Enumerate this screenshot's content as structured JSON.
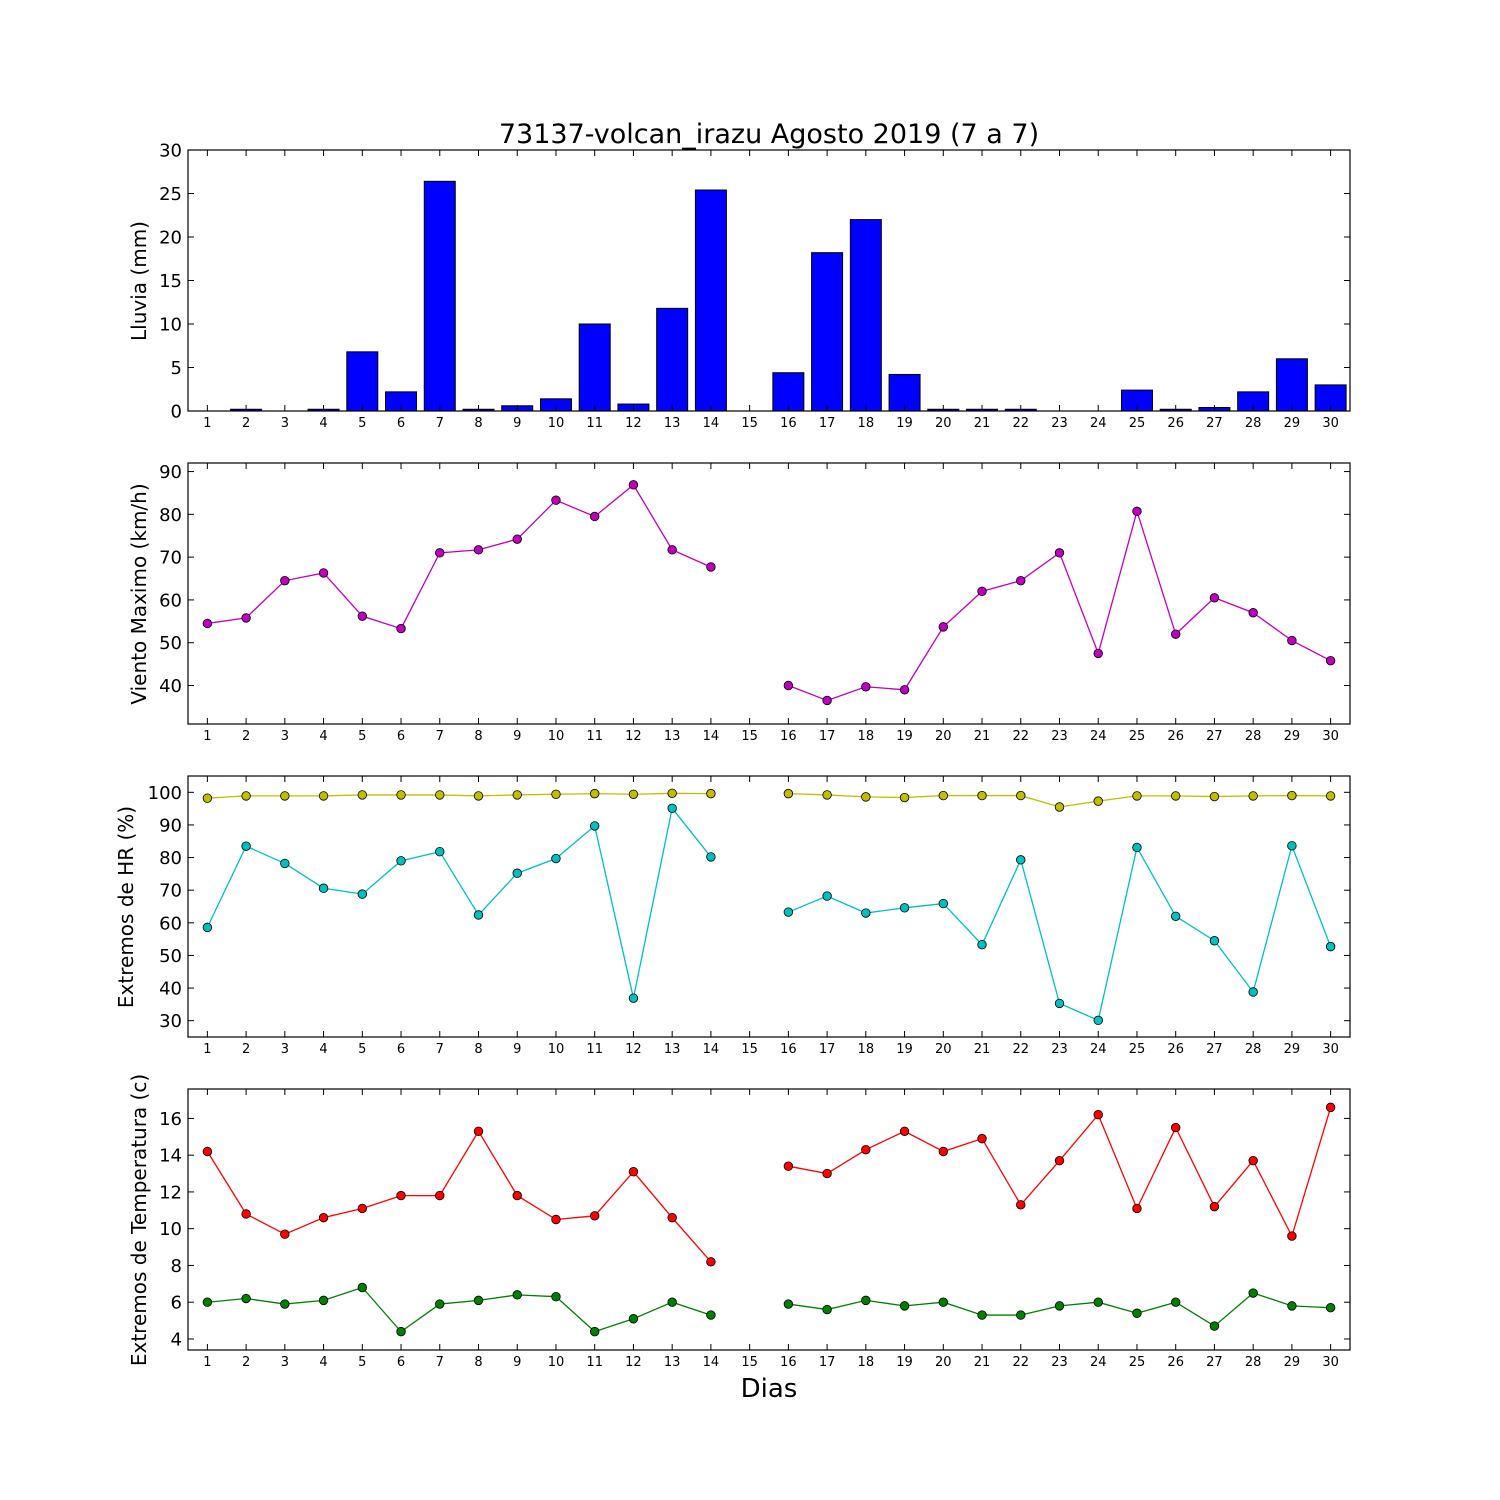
{
  "chart_data": [
    {
      "type": "bar",
      "title": "73137-volcan_irazu Agosto 2019  (7 a 7)",
      "ylabel": "Lluvia (mm)",
      "xlabel": "",
      "ylim": [
        0,
        30
      ],
      "yticks": [
        0,
        5,
        10,
        15,
        20,
        25,
        30
      ],
      "categories": [
        1,
        2,
        3,
        4,
        5,
        6,
        7,
        8,
        9,
        10,
        11,
        12,
        13,
        14,
        15,
        16,
        17,
        18,
        19,
        20,
        21,
        22,
        23,
        24,
        25,
        26,
        27,
        28,
        29,
        30
      ],
      "series": [
        {
          "values": [
            0.0,
            0.2,
            0.0,
            0.2,
            6.8,
            2.2,
            26.4,
            0.2,
            0.6,
            1.4,
            10.0,
            0.8,
            11.8,
            25.4,
            0.0,
            4.4,
            18.2,
            22.0,
            4.2,
            0.2,
            0.2,
            0.2,
            0.0,
            0.0,
            2.4,
            0.2,
            0.4,
            2.2,
            6.0,
            3.0
          ],
          "color": "#0000ff"
        }
      ],
      "grid": false
    },
    {
      "type": "line",
      "ylabel": "Viento Maximo (km/h)",
      "xlabel": "",
      "ylim": [
        31,
        92
      ],
      "yticks": [
        40,
        50,
        60,
        70,
        80,
        90
      ],
      "categories": [
        1,
        2,
        3,
        4,
        5,
        6,
        7,
        8,
        9,
        10,
        11,
        12,
        13,
        14,
        15,
        16,
        17,
        18,
        19,
        20,
        21,
        22,
        23,
        24,
        25,
        26,
        27,
        28,
        29,
        30
      ],
      "series": [
        {
          "values": [
            54.5,
            55.8,
            64.5,
            66.3,
            56.2,
            53.3,
            71.0,
            71.7,
            74.2,
            83.3,
            79.5,
            86.9,
            71.7,
            67.7,
            null,
            40.0,
            36.5,
            39.7,
            39.0,
            53.7,
            62.0,
            64.5,
            71.0,
            47.5,
            80.7,
            52.0,
            60.5,
            57.0,
            50.5,
            45.8
          ],
          "color": "#bf00bf"
        }
      ],
      "grid": false
    },
    {
      "type": "line",
      "ylabel": "Extremos de HR (%)",
      "xlabel": "",
      "ylim": [
        25,
        105
      ],
      "yticks": [
        30,
        40,
        50,
        60,
        70,
        80,
        90,
        100
      ],
      "categories": [
        1,
        2,
        3,
        4,
        5,
        6,
        7,
        8,
        9,
        10,
        11,
        12,
        13,
        14,
        15,
        16,
        17,
        18,
        19,
        20,
        21,
        22,
        23,
        24,
        25,
        26,
        27,
        28,
        29,
        30
      ],
      "series": [
        {
          "values": [
            98.2,
            98.9,
            98.9,
            98.9,
            99.2,
            99.2,
            99.2,
            98.9,
            99.2,
            99.4,
            99.6,
            99.4,
            99.7,
            99.6,
            null,
            99.6,
            99.2,
            98.6,
            98.4,
            99.0,
            99.0,
            99.0,
            95.5,
            97.3,
            98.9,
            98.9,
            98.7,
            98.9,
            99.0,
            98.9
          ],
          "color": "#bfbf00"
        },
        {
          "values": [
            58.6,
            83.5,
            78.2,
            70.6,
            68.8,
            79.0,
            81.8,
            62.4,
            75.2,
            79.7,
            89.7,
            36.9,
            95.1,
            80.2,
            null,
            63.3,
            68.2,
            63.0,
            64.6,
            65.9,
            53.3,
            79.3,
            35.3,
            30.1,
            83.1,
            62.0,
            54.5,
            38.8,
            83.6,
            52.7
          ],
          "color": "#00bfbf"
        }
      ],
      "grid": false
    },
    {
      "type": "line",
      "ylabel": "Extremos de Temperatura (c)",
      "xlabel": "Dias",
      "ylim": [
        3.4,
        17.6
      ],
      "yticks": [
        4,
        6,
        8,
        10,
        12,
        14,
        16
      ],
      "categories": [
        1,
        2,
        3,
        4,
        5,
        6,
        7,
        8,
        9,
        10,
        11,
        12,
        13,
        14,
        15,
        16,
        17,
        18,
        19,
        20,
        21,
        22,
        23,
        24,
        25,
        26,
        27,
        28,
        29,
        30
      ],
      "series": [
        {
          "values": [
            14.2,
            10.8,
            9.7,
            10.6,
            11.1,
            11.8,
            11.8,
            15.3,
            11.8,
            10.5,
            10.7,
            13.1,
            10.6,
            8.2,
            null,
            13.4,
            13.0,
            14.3,
            15.3,
            14.2,
            14.9,
            11.3,
            13.7,
            16.2,
            11.1,
            15.5,
            11.2,
            13.7,
            9.6,
            16.6
          ],
          "color": "#ff0000"
        },
        {
          "values": [
            6.0,
            6.2,
            5.9,
            6.1,
            6.8,
            4.4,
            5.9,
            6.1,
            6.4,
            6.3,
            4.4,
            5.1,
            6.0,
            5.3,
            null,
            5.9,
            5.6,
            6.1,
            5.8,
            6.0,
            5.3,
            5.3,
            5.8,
            6.0,
            5.4,
            6.0,
            4.7,
            6.5,
            5.8,
            5.7
          ],
          "color": "#008000"
        }
      ],
      "grid": false
    }
  ]
}
